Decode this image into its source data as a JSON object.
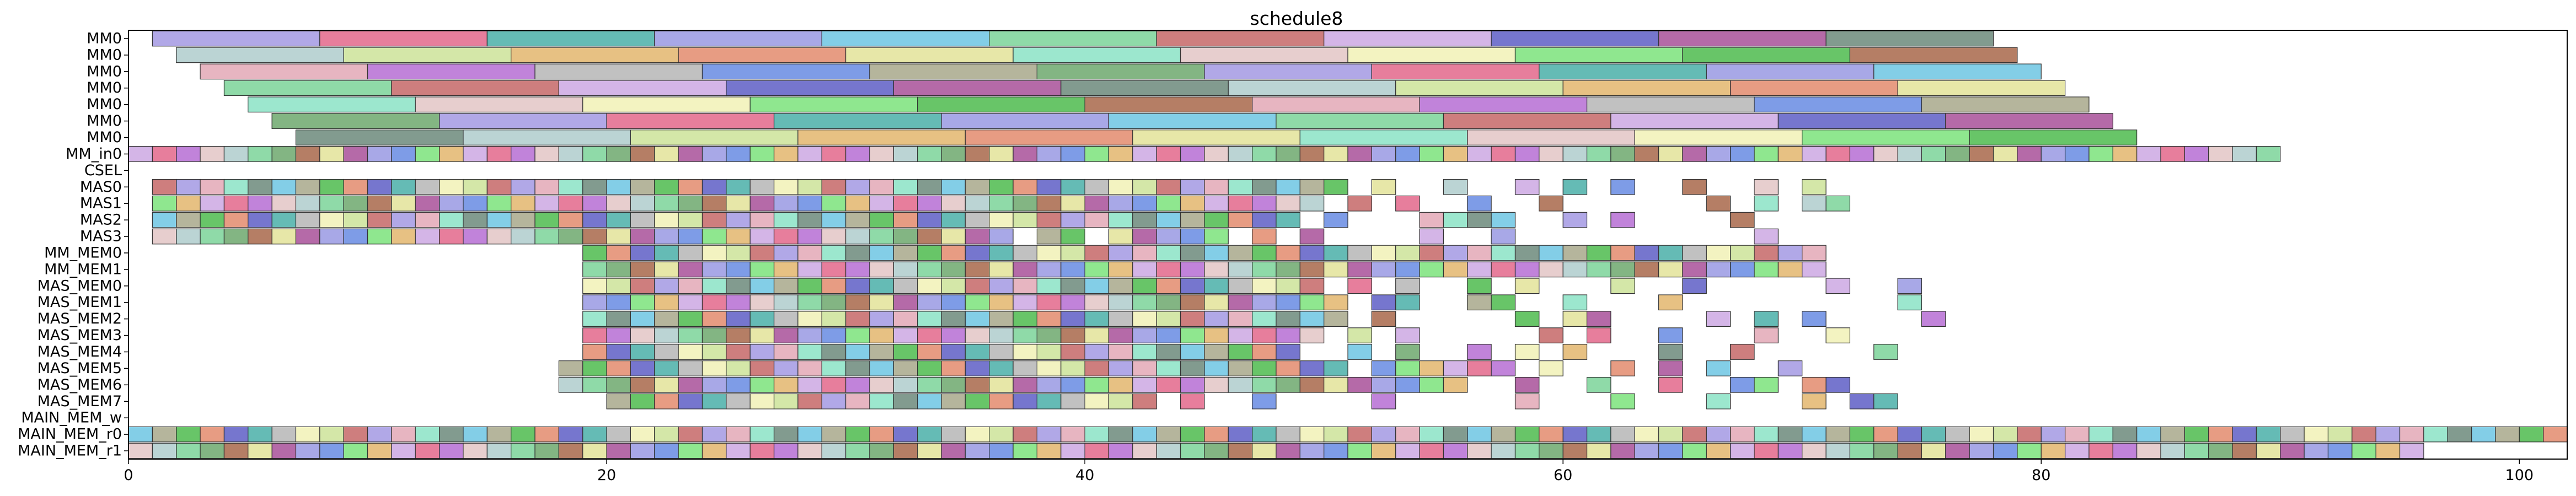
{
  "chart_data": {
    "type": "gantt",
    "title": "schedule8",
    "xlim": [
      0,
      102
    ],
    "x_ticks": [
      0,
      20,
      40,
      60,
      80,
      100
    ],
    "rows": [
      "MM0",
      "MM0",
      "MM0",
      "MM0",
      "MM0",
      "MM0",
      "MM0",
      "MM_in0",
      "CSEL",
      "MAS0",
      "MAS1",
      "MAS2",
      "MAS3",
      "MM_MEM0",
      "MM_MEM1",
      "MAS_MEM0",
      "MAS_MEM1",
      "MAS_MEM2",
      "MAS_MEM3",
      "MAS_MEM4",
      "MAS_MEM5",
      "MAS_MEM6",
      "MAS_MEM7",
      "MAIN_MEM_w",
      "MAIN_MEM_r0",
      "MAIN_MEM_r1"
    ],
    "palette": [
      "#9b8fe0",
      "#6fe06f",
      "#5f7f6f",
      "#e05a80",
      "#3db53d",
      "#a8c8c8",
      "#3aa8a0",
      "#a05a3a",
      "#c8e090",
      "#9090e0",
      "#e0a0b0",
      "#e0b060",
      "#60c0e0",
      "#b060d0",
      "#e08060",
      "#70d090",
      "#b0b0b0",
      "#e0e090",
      "#c05a5a",
      "#5a80e0",
      "#80e0c0",
      "#c8a0e0",
      "#a0a080",
      "#e0c0c0",
      "#5050c0",
      "#60a060",
      "#f0f0b0",
      "#a04090"
    ],
    "mm_lanes": [
      {
        "start": 1,
        "dur": 7.0,
        "n": 11
      },
      {
        "start": 2,
        "dur": 7.0,
        "n": 11
      },
      {
        "start": 3,
        "dur": 7.0,
        "n": 11
      },
      {
        "start": 4,
        "dur": 7.0,
        "n": 11
      },
      {
        "start": 5,
        "dur": 7.0,
        "n": 11
      },
      {
        "start": 6,
        "dur": 7.0,
        "n": 11
      },
      {
        "start": 7,
        "dur": 7.0,
        "n": 11
      }
    ],
    "short_tasks": {
      "duration": 1,
      "rows": {
        "MM_in0": [
          0,
          1,
          2,
          3,
          4,
          5,
          6,
          7,
          8,
          9,
          10,
          11,
          12,
          13,
          14,
          15,
          16,
          17,
          18,
          19,
          20,
          21,
          22,
          23,
          24,
          25,
          26,
          27,
          28,
          29,
          30,
          31,
          32,
          33,
          34,
          35,
          36,
          37,
          38,
          39,
          40,
          41,
          42,
          43,
          44,
          45,
          46,
          47,
          48,
          49,
          50,
          51,
          52,
          53,
          54,
          55,
          56,
          57,
          58,
          59,
          60,
          61,
          62,
          63,
          64,
          65,
          66,
          67,
          68,
          69,
          70,
          71,
          72,
          73,
          74,
          75,
          76,
          77,
          78,
          79,
          80,
          81,
          82,
          83,
          84,
          85,
          86,
          87,
          88,
          89
        ],
        "MAS0": [
          1,
          2,
          3,
          4,
          5,
          6,
          7,
          8,
          9,
          10,
          11,
          12,
          13,
          14,
          15,
          16,
          17,
          18,
          19,
          20,
          21,
          22,
          23,
          24,
          25,
          26,
          27,
          28,
          29,
          30,
          31,
          32,
          33,
          34,
          35,
          36,
          37,
          38,
          39,
          40,
          41,
          42,
          43,
          44,
          45,
          46,
          47,
          48,
          49,
          50,
          52,
          55,
          58,
          60,
          62,
          65,
          68,
          70
        ],
        "MAS1": [
          1,
          2,
          3,
          4,
          5,
          6,
          7,
          8,
          9,
          10,
          11,
          12,
          13,
          14,
          15,
          16,
          17,
          18,
          19,
          20,
          21,
          22,
          23,
          24,
          25,
          26,
          27,
          28,
          29,
          30,
          31,
          32,
          33,
          34,
          35,
          36,
          37,
          38,
          39,
          40,
          41,
          42,
          43,
          44,
          45,
          46,
          47,
          48,
          49,
          51,
          53,
          56,
          59,
          66,
          68,
          70,
          71
        ],
        "MAS2": [
          1,
          2,
          3,
          4,
          5,
          6,
          7,
          8,
          9,
          10,
          11,
          12,
          13,
          14,
          15,
          16,
          17,
          18,
          19,
          20,
          21,
          22,
          23,
          24,
          25,
          26,
          27,
          28,
          29,
          30,
          31,
          32,
          33,
          34,
          35,
          36,
          37,
          38,
          39,
          40,
          41,
          42,
          43,
          44,
          45,
          46,
          47,
          48,
          50,
          54,
          55,
          56,
          57,
          60,
          62,
          67
        ],
        "MAS3": [
          1,
          2,
          3,
          4,
          5,
          6,
          7,
          8,
          9,
          10,
          11,
          12,
          13,
          14,
          15,
          16,
          17,
          18,
          19,
          20,
          21,
          22,
          23,
          24,
          25,
          26,
          27,
          28,
          29,
          30,
          31,
          32,
          33,
          34,
          35,
          36,
          38,
          39,
          41,
          42,
          43,
          44,
          45,
          47,
          49,
          54,
          57,
          68
        ],
        "MM_MEM0": [
          19,
          20,
          21,
          22,
          23,
          24,
          25,
          26,
          27,
          28,
          29,
          30,
          31,
          32,
          33,
          34,
          35,
          36,
          37,
          38,
          39,
          40,
          41,
          42,
          43,
          44,
          45,
          46,
          47,
          48,
          49,
          50,
          51,
          52,
          53,
          54,
          55,
          56,
          57,
          58,
          59,
          60,
          61,
          62,
          63,
          64,
          65,
          66,
          67,
          68,
          69,
          70
        ],
        "MM_MEM1": [
          19,
          20,
          21,
          22,
          23,
          24,
          25,
          26,
          27,
          28,
          29,
          30,
          31,
          32,
          33,
          34,
          35,
          36,
          37,
          38,
          39,
          40,
          41,
          42,
          43,
          44,
          45,
          46,
          47,
          48,
          49,
          50,
          51,
          52,
          53,
          54,
          55,
          56,
          57,
          58,
          59,
          60,
          61,
          62,
          63,
          64,
          65,
          66,
          67,
          68,
          69,
          70
        ],
        "MAS_MEM0": [
          19,
          20,
          21,
          22,
          23,
          24,
          25,
          26,
          27,
          28,
          29,
          30,
          31,
          32,
          33,
          34,
          35,
          36,
          37,
          38,
          39,
          40,
          41,
          42,
          43,
          44,
          45,
          46,
          47,
          48,
          49,
          51,
          53,
          56,
          58,
          62,
          65,
          71,
          74
        ],
        "MAS_MEM1": [
          19,
          20,
          21,
          22,
          23,
          24,
          25,
          26,
          27,
          28,
          29,
          30,
          31,
          32,
          33,
          34,
          35,
          36,
          37,
          38,
          39,
          40,
          41,
          42,
          43,
          44,
          45,
          46,
          47,
          48,
          49,
          50,
          52,
          53,
          56,
          57,
          60,
          64,
          74
        ],
        "MAS_MEM2": [
          19,
          20,
          21,
          22,
          23,
          24,
          25,
          26,
          27,
          28,
          29,
          30,
          31,
          32,
          33,
          34,
          35,
          36,
          37,
          38,
          39,
          40,
          41,
          42,
          43,
          44,
          45,
          46,
          47,
          48,
          49,
          50,
          52,
          58,
          60,
          61,
          66,
          68,
          70,
          75
        ],
        "MAS_MEM3": [
          19,
          20,
          21,
          22,
          23,
          24,
          25,
          26,
          27,
          28,
          29,
          30,
          31,
          32,
          33,
          34,
          35,
          36,
          37,
          38,
          39,
          40,
          41,
          42,
          43,
          44,
          45,
          46,
          47,
          48,
          49,
          51,
          53,
          59,
          61,
          64,
          68,
          71
        ],
        "MAS_MEM4": [
          19,
          20,
          21,
          22,
          23,
          24,
          25,
          26,
          27,
          28,
          29,
          30,
          31,
          32,
          33,
          34,
          35,
          36,
          37,
          38,
          39,
          40,
          41,
          42,
          43,
          44,
          45,
          46,
          47,
          48,
          51,
          53,
          56,
          58,
          60,
          64,
          67,
          73
        ],
        "MAS_MEM5": [
          18,
          19,
          20,
          21,
          22,
          23,
          24,
          25,
          26,
          27,
          28,
          29,
          30,
          31,
          32,
          33,
          34,
          35,
          36,
          37,
          38,
          39,
          40,
          41,
          42,
          43,
          44,
          45,
          46,
          47,
          48,
          49,
          50,
          52,
          53,
          54,
          55,
          56,
          57,
          59,
          62,
          64,
          66,
          69
        ],
        "MAS_MEM6": [
          18,
          19,
          20,
          21,
          22,
          23,
          24,
          25,
          26,
          27,
          28,
          29,
          30,
          31,
          32,
          33,
          34,
          35,
          36,
          37,
          38,
          39,
          40,
          41,
          42,
          43,
          44,
          45,
          46,
          47,
          48,
          49,
          50,
          51,
          52,
          53,
          54,
          55,
          58,
          61,
          64,
          67,
          68,
          70,
          71
        ],
        "MAS_MEM7": [
          20,
          21,
          22,
          23,
          24,
          25,
          26,
          27,
          28,
          29,
          30,
          31,
          32,
          33,
          34,
          35,
          36,
          37,
          38,
          39,
          40,
          41,
          42,
          44,
          47,
          52,
          58,
          62,
          66,
          70,
          72,
          73
        ],
        "MAIN_MEM_r0": [
          0,
          1,
          2,
          3,
          4,
          5,
          6,
          7,
          8,
          9,
          10,
          11,
          12,
          13,
          14,
          15,
          16,
          17,
          18,
          19,
          20,
          21,
          22,
          23,
          24,
          25,
          26,
          27,
          28,
          29,
          30,
          31,
          32,
          33,
          34,
          35,
          36,
          37,
          38,
          39,
          40,
          41,
          42,
          43,
          44,
          45,
          46,
          47,
          48,
          49,
          50,
          51,
          52,
          53,
          54,
          55,
          56,
          57,
          58,
          59,
          60,
          61,
          62,
          63,
          64,
          65,
          66,
          67,
          68,
          69,
          70,
          71,
          72,
          73,
          74,
          75,
          76,
          77,
          78,
          79,
          80,
          81,
          82,
          83,
          84,
          85,
          86,
          87,
          88,
          89,
          90,
          91,
          92,
          93,
          94,
          95,
          96,
          97,
          98,
          99,
          100,
          101
        ],
        "MAIN_MEM_r1": [
          0,
          1,
          2,
          3,
          4,
          5,
          6,
          7,
          8,
          9,
          10,
          11,
          12,
          13,
          14,
          15,
          16,
          17,
          18,
          19,
          20,
          21,
          22,
          23,
          24,
          25,
          26,
          27,
          28,
          29,
          30,
          31,
          32,
          33,
          34,
          35,
          36,
          37,
          38,
          39,
          40,
          41,
          42,
          43,
          44,
          45,
          46,
          47,
          48,
          49,
          50,
          51,
          52,
          53,
          54,
          55,
          56,
          57,
          58,
          59,
          60,
          61,
          62,
          63,
          64,
          65,
          66,
          67,
          68,
          69,
          70,
          71,
          72,
          73,
          74,
          75,
          76,
          77,
          78,
          79,
          80,
          81,
          82,
          83,
          84,
          85,
          86,
          87,
          88,
          89,
          90,
          91,
          92,
          93,
          94,
          95
        ]
      }
    }
  }
}
